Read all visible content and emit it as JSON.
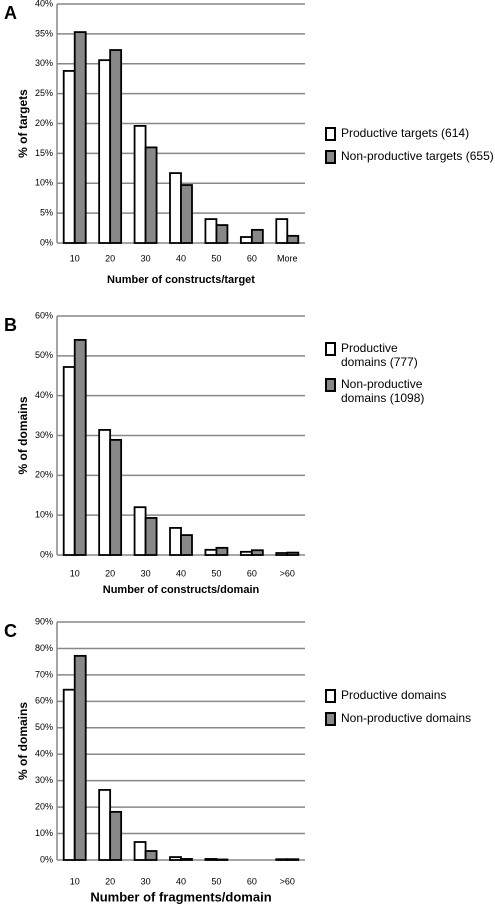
{
  "chart_data": [
    {
      "type": "bar",
      "panel_label": "A",
      "y_label": "% of targets",
      "x_label": "Number of constructs/target",
      "categories": [
        "10",
        "20",
        "30",
        "40",
        "50",
        "60",
        "More"
      ],
      "series": [
        {
          "name": "Productive targets (614)",
          "color": "#ffffff",
          "values": [
            28.8,
            30.6,
            19.6,
            11.7,
            4,
            1,
            4
          ]
        },
        {
          "name": "Non-productive targets (655)",
          "color": "#888888",
          "values": [
            35.3,
            32.3,
            16,
            9.7,
            3,
            2.2,
            1.2
          ]
        }
      ],
      "ylim": [
        0,
        40
      ],
      "yticks": [
        {
          "value": 0,
          "label": "0%"
        },
        {
          "value": 5,
          "label": "5%"
        },
        {
          "value": 10,
          "label": "10%"
        },
        {
          "value": 15,
          "label": "15%"
        },
        {
          "value": 20,
          "label": "20%"
        },
        {
          "value": 25,
          "label": "25%"
        },
        {
          "value": 30,
          "label": "30%"
        },
        {
          "value": 35,
          "label": "35%"
        },
        {
          "value": 40,
          "label": "40%"
        }
      ],
      "grid": true
    },
    {
      "type": "bar",
      "panel_label": "B",
      "y_label": "% of domains",
      "x_label": "Number of constructs/domain",
      "categories": [
        "10",
        "20",
        "30",
        "40",
        "50",
        "60",
        ">60"
      ],
      "series": [
        {
          "name": "Productive domains (777)",
          "color": "#ffffff",
          "values": [
            47.2,
            31.4,
            12,
            6.8,
            1.3,
            0.8,
            0.5
          ]
        },
        {
          "name": "Non-productive domains (1098)",
          "color": "#888888",
          "values": [
            54,
            28.9,
            9.3,
            5,
            1.8,
            1.2,
            0.6
          ]
        }
      ],
      "ylim": [
        0,
        60
      ],
      "yticks": [
        {
          "value": 0,
          "label": "0%"
        },
        {
          "value": 10,
          "label": "10%"
        },
        {
          "value": 20,
          "label": "20%"
        },
        {
          "value": 30,
          "label": "30%"
        },
        {
          "value": 40,
          "label": "40%"
        },
        {
          "value": 50,
          "label": "50%"
        },
        {
          "value": 60,
          "label": "60%"
        }
      ],
      "grid": true
    },
    {
      "type": "bar",
      "panel_label": "C",
      "y_label": "% of domains",
      "x_label": "Number of fragments/domain",
      "categories": [
        "10",
        "20",
        "30",
        "40",
        "50",
        "60",
        ">60"
      ],
      "series": [
        {
          "name": "Productive domains",
          "color": "#ffffff",
          "values": [
            64.4,
            26.5,
            6.8,
            1.1,
            0.4,
            0,
            0.3
          ]
        },
        {
          "name": "Non-productive domains",
          "color": "#888888",
          "values": [
            77.2,
            18.2,
            3.4,
            0.4,
            0.2,
            0,
            0.3
          ]
        }
      ],
      "ylim": [
        0,
        90
      ],
      "yticks": [
        {
          "value": 0,
          "label": "0%"
        },
        {
          "value": 10,
          "label": "10%"
        },
        {
          "value": 20,
          "label": "20%"
        },
        {
          "value": 30,
          "label": "30%"
        },
        {
          "value": 40,
          "label": "40%"
        },
        {
          "value": 50,
          "label": "50%"
        },
        {
          "value": 60,
          "label": "60%"
        },
        {
          "value": 70,
          "label": "70%"
        },
        {
          "value": 80,
          "label": "80%"
        },
        {
          "value": 90,
          "label": "90%"
        }
      ],
      "grid": true
    }
  ]
}
